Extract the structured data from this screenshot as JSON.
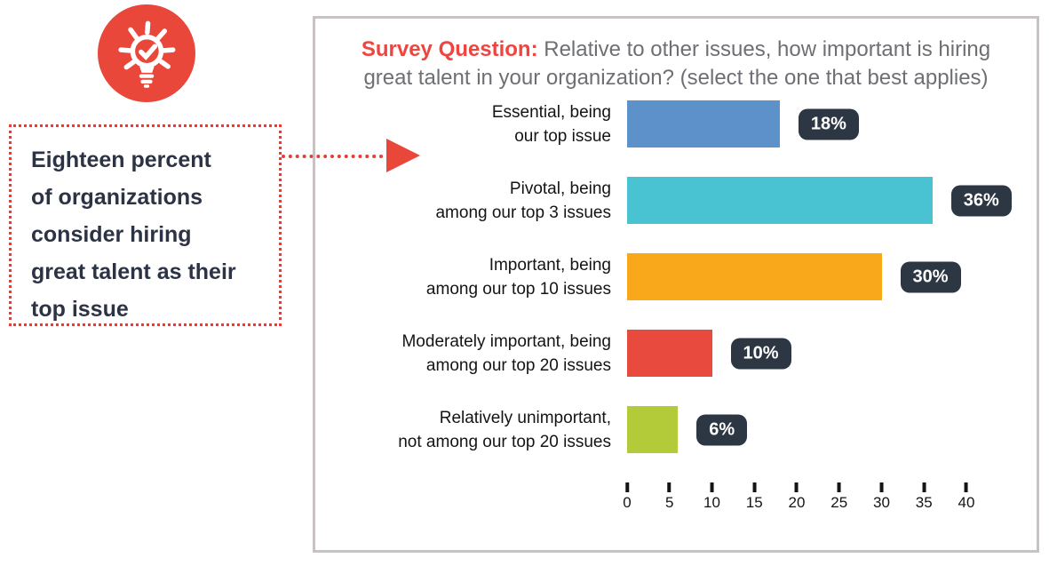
{
  "callout": {
    "icon": "lightbulb-check-icon",
    "text": "Eighteen percent\nof organizations\nconsider hiring\ngreat talent as their\ntop issue"
  },
  "panel": {
    "title_prefix": "Survey Question:",
    "title_rest": " Relative to other issues, how important is hiring great talent in your organization? (select the one that best applies)"
  },
  "chart_data": {
    "type": "bar",
    "orientation": "horizontal",
    "title": "Relative to other issues, how important is hiring great talent in your organization?",
    "categories": [
      "Essential, being\nour top issue",
      "Pivotal, being\namong our top 3 issues",
      "Important, being\namong our top 10 issues",
      "Moderately important, being\namong our top 20 issues",
      "Relatively unimportant,\nnot among our top 20 issues"
    ],
    "values": [
      18,
      36,
      30,
      10,
      6
    ],
    "value_labels": [
      "18%",
      "36%",
      "30%",
      "10%",
      "6%"
    ],
    "bar_colors": [
      "#5c91c9",
      "#49c3d2",
      "#f9a81c",
      "#e94a3e",
      "#b3cb39"
    ],
    "xlim": [
      0,
      40
    ],
    "x_ticks": [
      0,
      5,
      10,
      15,
      20,
      25,
      30,
      35,
      40
    ],
    "badge_color": "#2d3743",
    "grid": false,
    "legend": false
  },
  "colors": {
    "accent_red": "#e8473a",
    "dotted_border_red": "#e23f3a",
    "panel_border": "#c8c2c2",
    "title_gray": "#6e6f72",
    "callout_text": "#2c3345",
    "badge_bg": "#2d3743",
    "badge_text": "#ffffff"
  }
}
